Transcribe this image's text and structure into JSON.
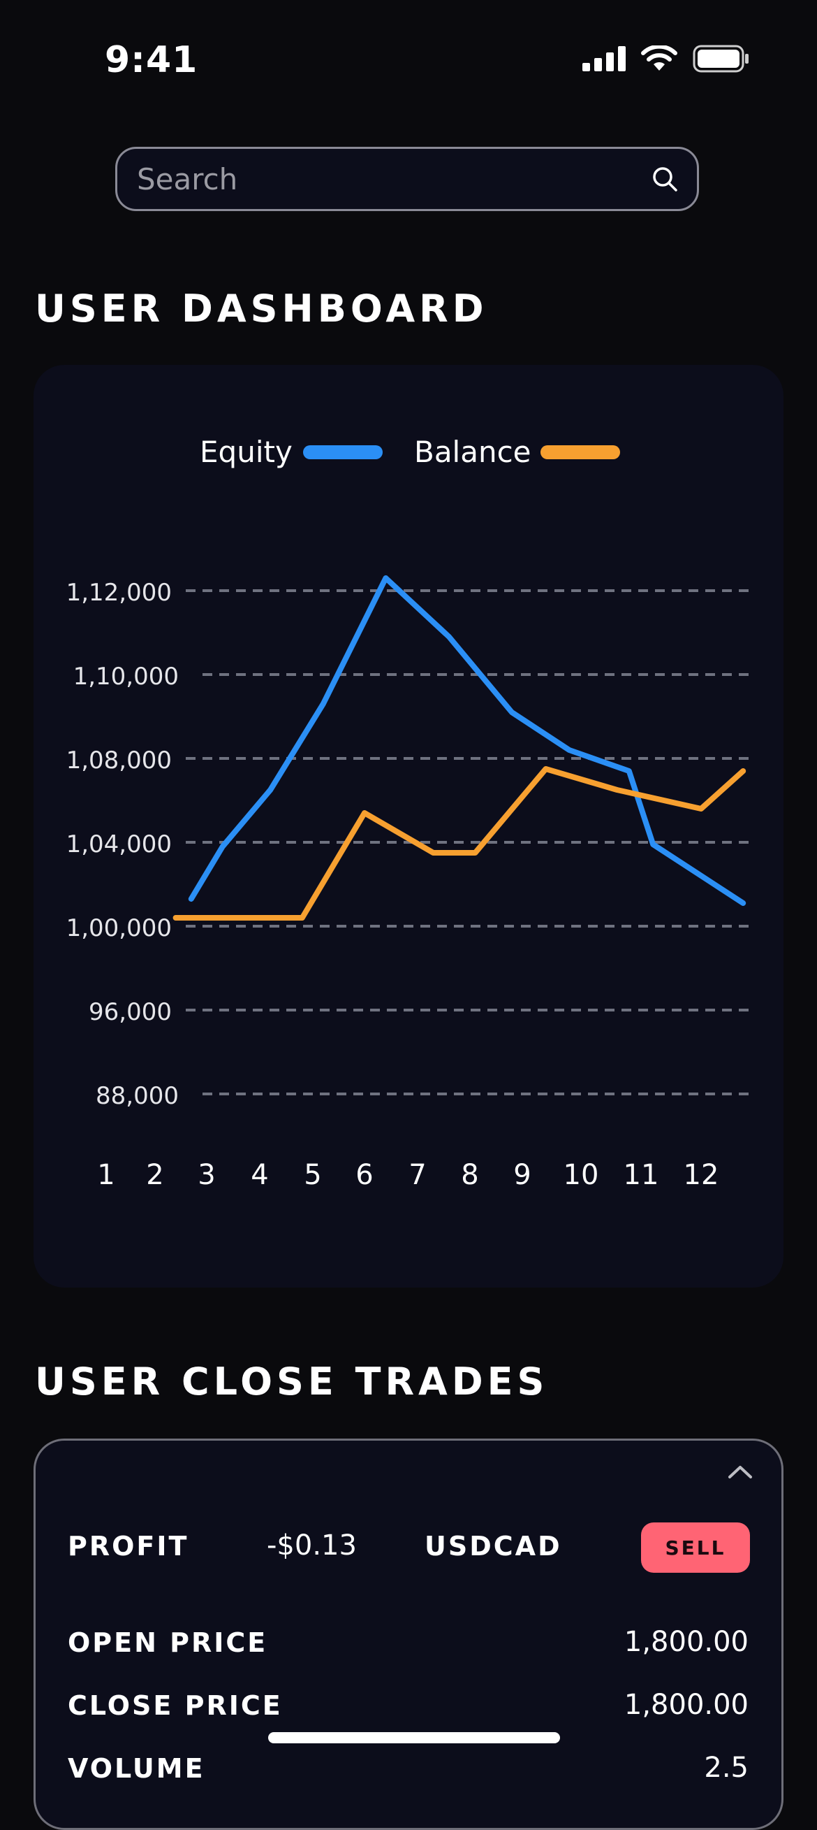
{
  "status_bar": {
    "time": "9:41"
  },
  "search": {
    "placeholder": "Search"
  },
  "dashboard": {
    "title": "USER DASHBOARD"
  },
  "chart_data": {
    "type": "line",
    "legend": [
      {
        "name": "Equity",
        "color": "#2b8ff5"
      },
      {
        "name": "Balance",
        "color": "#f7a030"
      }
    ],
    "y_ticks": [
      "1,12,000",
      "1,10,000",
      "1,08,000",
      "1,04,000",
      "1,00,000",
      "96,000",
      "88,000"
    ],
    "x_ticks": [
      "1",
      "2",
      "3",
      "4",
      "5",
      "6",
      "7",
      "8",
      "9",
      "10",
      "11",
      "12"
    ],
    "series": [
      {
        "name": "Equity",
        "color": "#2b8ff5",
        "points": [
          [
            2.7,
            101300
          ],
          [
            3.3,
            103800
          ],
          [
            4.2,
            106500
          ],
          [
            5.2,
            109300
          ],
          [
            6.4,
            112300
          ],
          [
            7.6,
            110900
          ],
          [
            8.8,
            109100
          ],
          [
            9.8,
            108200
          ],
          [
            10.8,
            107400
          ],
          [
            11.2,
            103900
          ],
          [
            12.7,
            101100
          ]
        ]
      },
      {
        "name": "Balance",
        "color": "#f7a030",
        "points": [
          [
            2.4,
            100400
          ],
          [
            3.6,
            100400
          ],
          [
            4.8,
            100400
          ],
          [
            6.0,
            105400
          ],
          [
            7.3,
            103500
          ],
          [
            8.1,
            103500
          ],
          [
            9.4,
            107500
          ],
          [
            10.6,
            106500
          ],
          [
            12.0,
            105600
          ],
          [
            12.7,
            107400
          ]
        ]
      }
    ],
    "grid": true,
    "legend_position": "top"
  },
  "trades": {
    "title": "USER CLOSE TRADES",
    "card": {
      "profit_label": "PROFIT",
      "profit_value": "-$0.13",
      "symbol": "USDCAD",
      "side": "SELL",
      "open_price_label": "OPEN PRICE",
      "open_price_value": "1,800.00",
      "close_price_label": "CLOSE PRICE",
      "close_price_value": "1,800.00",
      "volume_label": "VOLUME",
      "volume_value": "2.5"
    }
  }
}
